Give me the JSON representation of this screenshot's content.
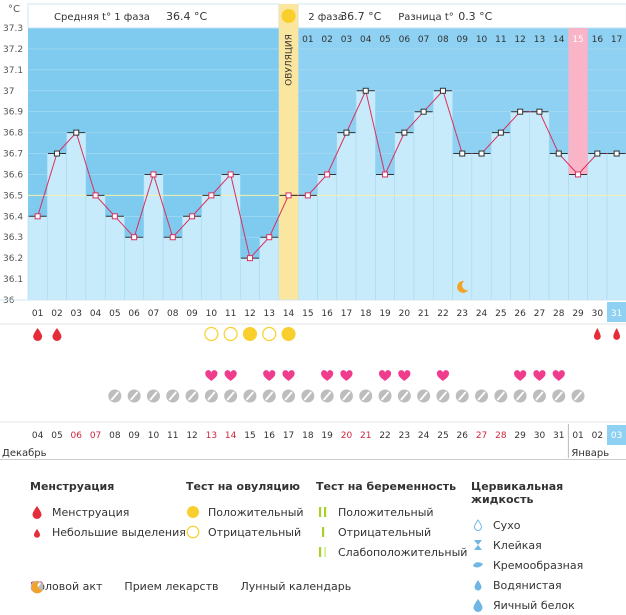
{
  "header": {
    "phase1_label": "Средняя t° 1 фаза",
    "phase1_value": "36.4 °C",
    "phase2_label": "2 фаза",
    "phase2_value": "36.7 °C",
    "diff_label": "Разница t°",
    "diff_value": "0.3 °C",
    "ovulation_label": "ОВУЛЯЦИЯ",
    "unit": "°C"
  },
  "chart_data": {
    "type": "line",
    "ylim": [
      36.0,
      37.3
    ],
    "yticks": [
      "37.3",
      "37.2",
      "37.1",
      "37",
      "36.9",
      "36.8",
      "36.7",
      "36.6",
      "36.5",
      "36.4",
      "36.3",
      "36.2",
      "36.1",
      "36"
    ],
    "cycle_days": [
      "01",
      "02",
      "03",
      "04",
      "05",
      "06",
      "07",
      "08",
      "09",
      "10",
      "11",
      "12",
      "13",
      "14",
      "15",
      "16",
      "17",
      "18",
      "19",
      "20",
      "21",
      "22",
      "23",
      "24",
      "25",
      "26",
      "27",
      "28",
      "29",
      "30",
      "31"
    ],
    "phase2_days": [
      "01",
      "02",
      "03",
      "04",
      "05",
      "06",
      "07",
      "08",
      "09",
      "10",
      "11",
      "12",
      "13",
      "14",
      "15",
      "16",
      "17"
    ],
    "temperatures": [
      36.4,
      36.7,
      36.8,
      36.5,
      36.4,
      36.3,
      36.6,
      36.3,
      36.4,
      36.5,
      36.6,
      36.2,
      36.3,
      36.5,
      36.5,
      36.6,
      36.8,
      37.0,
      36.6,
      36.8,
      36.9,
      37.0,
      36.7,
      36.7,
      36.8,
      36.9,
      36.9,
      36.7,
      36.6,
      36.7,
      36.7
    ],
    "ovulation_day": 14,
    "highlight_day": 29,
    "coverline": 36.5,
    "dates": [
      "04",
      "05",
      "06",
      "07",
      "08",
      "09",
      "10",
      "11",
      "12",
      "13",
      "14",
      "15",
      "16",
      "17",
      "18",
      "19",
      "20",
      "21",
      "22",
      "23",
      "24",
      "25",
      "26",
      "27",
      "28",
      "29",
      "30",
      "31",
      "01",
      "02",
      "03"
    ],
    "weekend_date_indices": [
      2,
      3,
      9,
      10,
      16,
      17,
      23,
      24
    ],
    "month_left": "Декабрь",
    "month_right": "Январь",
    "menstruation_days": [
      1,
      2,
      30,
      31
    ],
    "ovulation_test_negative_days": [
      10,
      11,
      13
    ],
    "ovulation_test_positive_days": [
      12,
      14
    ],
    "intercourse_days": [
      10,
      11,
      13,
      14,
      16,
      17,
      19,
      20,
      22,
      26,
      27,
      28
    ],
    "medication_days": [
      5,
      6,
      7,
      8,
      9,
      10,
      11,
      12,
      13,
      14,
      15,
      16,
      17,
      18,
      19,
      20,
      21,
      22,
      23,
      24,
      25,
      26,
      27,
      28,
      29
    ],
    "moon_day": 23
  },
  "legend": {
    "menstruation_title": "Менструация",
    "menstruation_items": [
      "Менструация",
      "Небольшие выделения"
    ],
    "ovulation_title": "Тест на овуляцию",
    "ovulation_items": [
      "Положительный",
      "Отрицательный"
    ],
    "pregnancy_title": "Тест на беременность",
    "pregnancy_items": [
      "Положительный",
      "Отрицательный",
      "Слабоположительный"
    ],
    "cervical_title": "Цервикальная жидкость",
    "cervical_items": [
      "Сухо",
      "Клейкая",
      "Кремообразная",
      "Водянистая",
      "Яичный белок"
    ],
    "intercourse": "Половой акт",
    "medication": "Прием лекарств",
    "lunar": "Лунный календарь"
  },
  "colors": {
    "phase1_bg": "#7fcbf0",
    "phase2_bg": "#8fd1f2",
    "bar_fill": "#c8ebfb",
    "ovulation_band": "#fbe6a0",
    "highlight_band": "#f9b4c8",
    "line": "#d9305e",
    "heart": "#f03c8c",
    "drop": "#e52d3a",
    "sun": "#f8cf2c",
    "pill": "#bdbdbd",
    "moon": "#f2a42a"
  }
}
